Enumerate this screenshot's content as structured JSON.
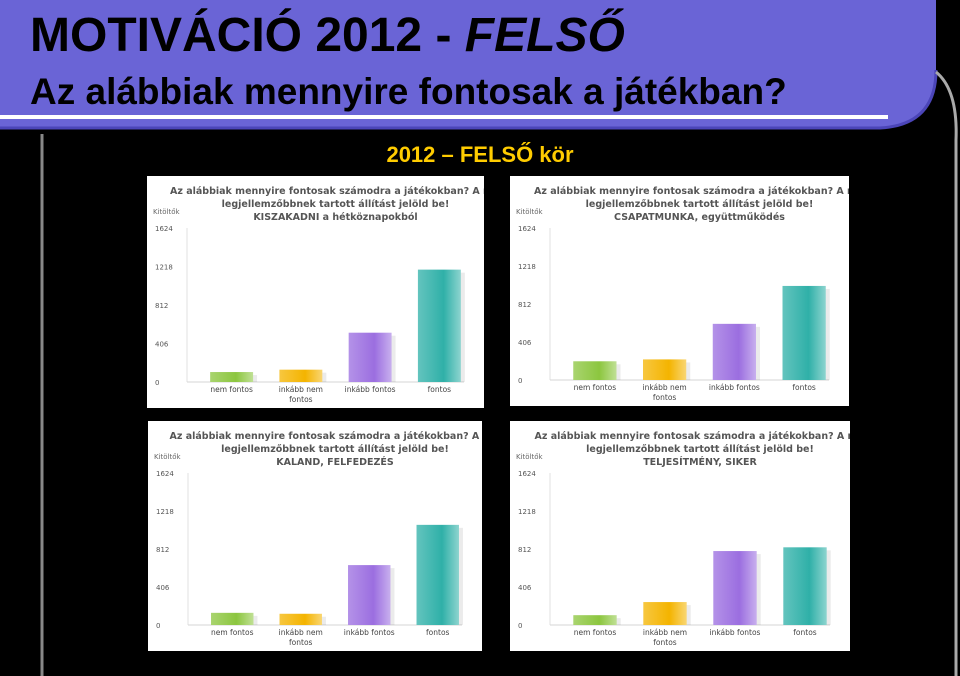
{
  "header": {
    "title_bold": "MOTIVÁCIÓ",
    "title_year": "2012 -",
    "title_italic": "FELSŐ",
    "question": "Az alábbiak mennyire fontosak a játékban?",
    "subtitle": "2012 – FELSŐ kör"
  },
  "colors": {
    "banner": "#6a64d6",
    "banner_edge": "#4b45b8",
    "subtitle": "#ffcc00",
    "series": [
      "#8cc63f",
      "#f4b400",
      "#9b6ee0",
      "#2fb0a8"
    ]
  },
  "chart_data": [
    {
      "type": "bar",
      "title_lines": [
        "Az alábbiak mennyire fontosak számodra a játékokban? A rád",
        "legjellemzőbbnek tartott állítást jelöld be!"
      ],
      "topic": "KISZAKADNI a hétköznapokból",
      "ylabel": "Kitöltők",
      "y_ticks": [
        0,
        406,
        812,
        1218,
        1624
      ],
      "ylim": [
        0,
        1624
      ],
      "categories": [
        "nem fontos",
        "inkább nem fontos",
        "inkább fontos",
        "fontos"
      ],
      "category_lines": [
        [
          "nem fontos"
        ],
        [
          "inkább nem",
          "fontos"
        ],
        [
          "inkább fontos"
        ],
        [
          "fontos"
        ]
      ],
      "values": [
        105,
        130,
        520,
        1185
      ]
    },
    {
      "type": "bar",
      "title_lines": [
        "Az alábbiak mennyire fontosak számodra a játékokban? A rád",
        "legjellemzőbbnek tartott állítást jelöld be!"
      ],
      "topic": "CSAPATMUNKA, együttműködés",
      "ylabel": "Kitöltők",
      "y_ticks": [
        0,
        406,
        812,
        1218,
        1624
      ],
      "ylim": [
        0,
        1624
      ],
      "categories": [
        "nem fontos",
        "inkább nem fontos",
        "inkább fontos",
        "fontos"
      ],
      "category_lines": [
        [
          "nem fontos"
        ],
        [
          "inkább nem",
          "fontos"
        ],
        [
          "inkább fontos"
        ],
        [
          "fontos"
        ]
      ],
      "values": [
        200,
        220,
        600,
        1005
      ]
    },
    {
      "type": "bar",
      "title_lines": [
        "Az alábbiak mennyire fontosak számodra a játékokban? A rád",
        "legjellemzőbbnek tartott állítást jelöld be!"
      ],
      "topic": "KALAND, FELFEDEZÉS",
      "ylabel": "Kitöltők",
      "y_ticks": [
        0,
        406,
        812,
        1218,
        1624
      ],
      "ylim": [
        0,
        1624
      ],
      "categories": [
        "nem fontos",
        "inkább nem fontos",
        "inkább fontos",
        "fontos"
      ],
      "category_lines": [
        [
          "nem fontos"
        ],
        [
          "inkább nem",
          "fontos"
        ],
        [
          "inkább fontos"
        ],
        [
          "fontos"
        ]
      ],
      "values": [
        130,
        120,
        640,
        1070
      ]
    },
    {
      "type": "bar",
      "title_lines": [
        "Az alábbiak mennyire fontosak számodra a játékokban? A rád",
        "legjellemzőbbnek tartott állítást jelöld be!"
      ],
      "topic": "TELJESÍTMÉNY, SIKER",
      "ylabel": "Kitöltők",
      "y_ticks": [
        0,
        406,
        812,
        1218,
        1624
      ],
      "ylim": [
        0,
        1624
      ],
      "categories": [
        "nem fontos",
        "inkább nem fontos",
        "inkább fontos",
        "fontos"
      ],
      "category_lines": [
        [
          "nem fontos"
        ],
        [
          "inkább nem",
          "fontos"
        ],
        [
          "inkább fontos"
        ],
        [
          "fontos"
        ]
      ],
      "values": [
        105,
        245,
        790,
        830
      ]
    }
  ]
}
